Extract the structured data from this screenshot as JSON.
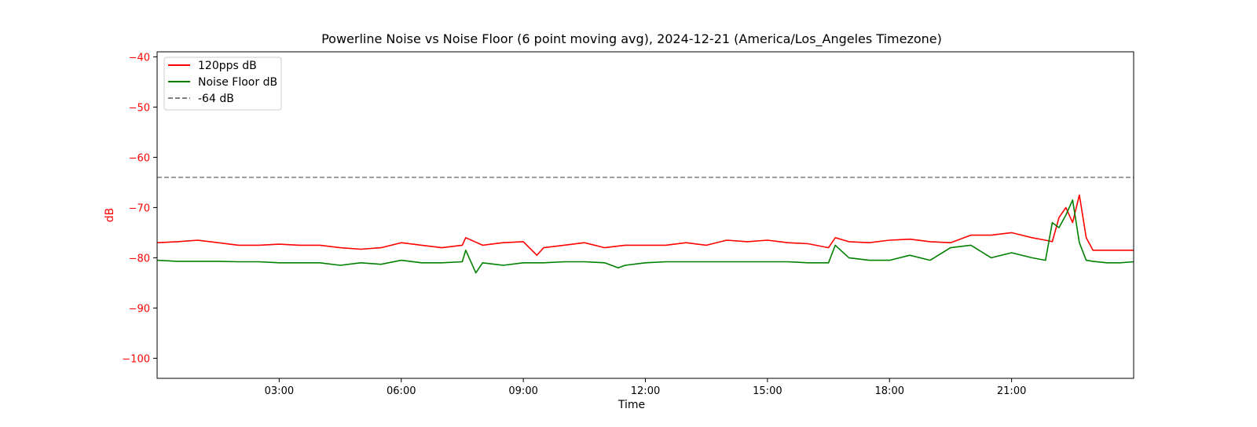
{
  "chart_data": {
    "type": "line",
    "title": "Powerline Noise vs Noise Floor (6 point moving avg), 2024-12-21 (America/Los_Angeles Timezone)",
    "xlabel": "Time",
    "ylabel": "dB",
    "xlim": [
      "00:00",
      "24:00"
    ],
    "ylim": [
      -104,
      -39
    ],
    "xticks": [
      "03:00",
      "06:00",
      "09:00",
      "12:00",
      "15:00",
      "18:00",
      "21:00"
    ],
    "yticks": [
      -40,
      -50,
      -60,
      -70,
      -80,
      -90,
      -100
    ],
    "grid": false,
    "legend_position": "upper left",
    "colors": {
      "series_120pps": "#ff0000",
      "series_noise_floor": "#008000",
      "reference_line": "#7f7f7f",
      "y_axis_text": "#ff0000"
    },
    "reference_line": {
      "name": "-64 dB",
      "y": -64
    },
    "series": [
      {
        "name": "120pps dB",
        "x": [
          "00:00",
          "00:30",
          "01:00",
          "01:30",
          "02:00",
          "02:30",
          "03:00",
          "03:30",
          "04:00",
          "04:30",
          "05:00",
          "05:30",
          "06:00",
          "06:30",
          "07:00",
          "07:30",
          "07:35",
          "08:00",
          "08:30",
          "09:00",
          "09:20",
          "09:30",
          "10:00",
          "10:30",
          "11:00",
          "11:30",
          "12:00",
          "12:30",
          "13:00",
          "13:30",
          "14:00",
          "14:30",
          "15:00",
          "15:30",
          "16:00",
          "16:30",
          "16:40",
          "17:00",
          "17:30",
          "18:00",
          "18:30",
          "19:00",
          "19:30",
          "20:00",
          "20:30",
          "21:00",
          "21:30",
          "21:50",
          "22:00",
          "22:10",
          "22:20",
          "22:30",
          "22:40",
          "22:50",
          "23:00",
          "23:20",
          "23:40",
          "24:00"
        ],
        "values": [
          -77,
          -76.8,
          -76.5,
          -77,
          -77.5,
          -77.5,
          -77.3,
          -77.5,
          -77.5,
          -78,
          -78.3,
          -78,
          -77,
          -77.5,
          -78,
          -77.5,
          -76,
          -77.5,
          -77,
          -76.8,
          -79.5,
          -78,
          -77.5,
          -77,
          -78,
          -77.5,
          -77.5,
          -77.5,
          -77,
          -77.5,
          -76.5,
          -76.8,
          -76.5,
          -77,
          -77.2,
          -78,
          -76,
          -76.8,
          -77,
          -76.5,
          -76.3,
          -76.8,
          -77,
          -75.5,
          -75.5,
          -75,
          -76,
          -76.5,
          -76.8,
          -72,
          -70,
          -73,
          -67.5,
          -76,
          -78.5,
          -78.5,
          -78.5,
          -78.5
        ]
      },
      {
        "name": "Noise Floor dB",
        "x": [
          "00:00",
          "00:30",
          "01:00",
          "01:30",
          "02:00",
          "02:30",
          "03:00",
          "03:30",
          "04:00",
          "04:30",
          "05:00",
          "05:30",
          "06:00",
          "06:30",
          "07:00",
          "07:30",
          "07:35",
          "07:50",
          "08:00",
          "08:30",
          "09:00",
          "09:30",
          "10:00",
          "10:30",
          "11:00",
          "11:20",
          "11:30",
          "12:00",
          "12:30",
          "13:00",
          "13:30",
          "14:00",
          "14:30",
          "15:00",
          "15:30",
          "16:00",
          "16:30",
          "16:40",
          "17:00",
          "17:30",
          "18:00",
          "18:30",
          "19:00",
          "19:30",
          "20:00",
          "20:30",
          "21:00",
          "21:30",
          "21:50",
          "22:00",
          "22:10",
          "22:20",
          "22:30",
          "22:40",
          "22:50",
          "23:00",
          "23:20",
          "23:40",
          "24:00"
        ],
        "values": [
          -80.5,
          -80.7,
          -80.7,
          -80.7,
          -80.8,
          -80.8,
          -81,
          -81,
          -81,
          -81.5,
          -81,
          -81.3,
          -80.5,
          -81,
          -81,
          -80.8,
          -78.5,
          -83,
          -81,
          -81.5,
          -81,
          -81,
          -80.8,
          -80.8,
          -81,
          -82,
          -81.5,
          -81,
          -80.8,
          -80.8,
          -80.8,
          -80.8,
          -80.8,
          -80.8,
          -80.8,
          -81,
          -81,
          -77.5,
          -80,
          -80.5,
          -80.5,
          -79.5,
          -80.5,
          -78,
          -77.5,
          -80,
          -79,
          -80,
          -80.5,
          -73,
          -74,
          -71.5,
          -68.5,
          -77,
          -80.5,
          -80.7,
          -81,
          -81,
          -80.8
        ]
      }
    ]
  }
}
